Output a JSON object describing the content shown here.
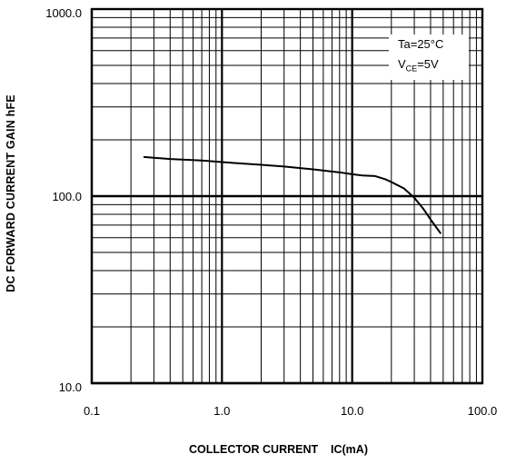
{
  "chart_data": {
    "type": "line",
    "scale": {
      "x": "log",
      "y": "log"
    },
    "xlim": [
      0.1,
      100
    ],
    "ylim": [
      10,
      1000
    ],
    "x_ticks": [
      "0.1",
      "1.0",
      "10.0",
      "100.0"
    ],
    "y_ticks": [
      "1000.0",
      "100.0",
      "10.0"
    ],
    "xlabel": "COLLECTOR CURRENT    IC(mA)",
    "ylabel": "DC FORWARD CURRENT GAIN   hFE",
    "grid": true,
    "annotation": {
      "line1": "Ta=25°C",
      "vce_prefix": "V",
      "vce_sub": "CE",
      "vce_value": "=5V"
    },
    "series": [
      {
        "x": [
          0.25,
          0.4,
          0.7,
          1.0,
          2.0,
          3.0,
          5.0,
          8.0,
          10.0,
          12.0,
          15.0,
          18.0,
          20.0,
          25.0,
          30.0,
          35.0,
          40.0,
          48.0
        ],
        "y": [
          162,
          158,
          155,
          152,
          147,
          144,
          139,
          134,
          131,
          129,
          128,
          123,
          119,
          110,
          98,
          86,
          75,
          63
        ]
      }
    ],
    "colors": {
      "line": "#000000",
      "grid": "#000000",
      "background": "#ffffff"
    }
  }
}
